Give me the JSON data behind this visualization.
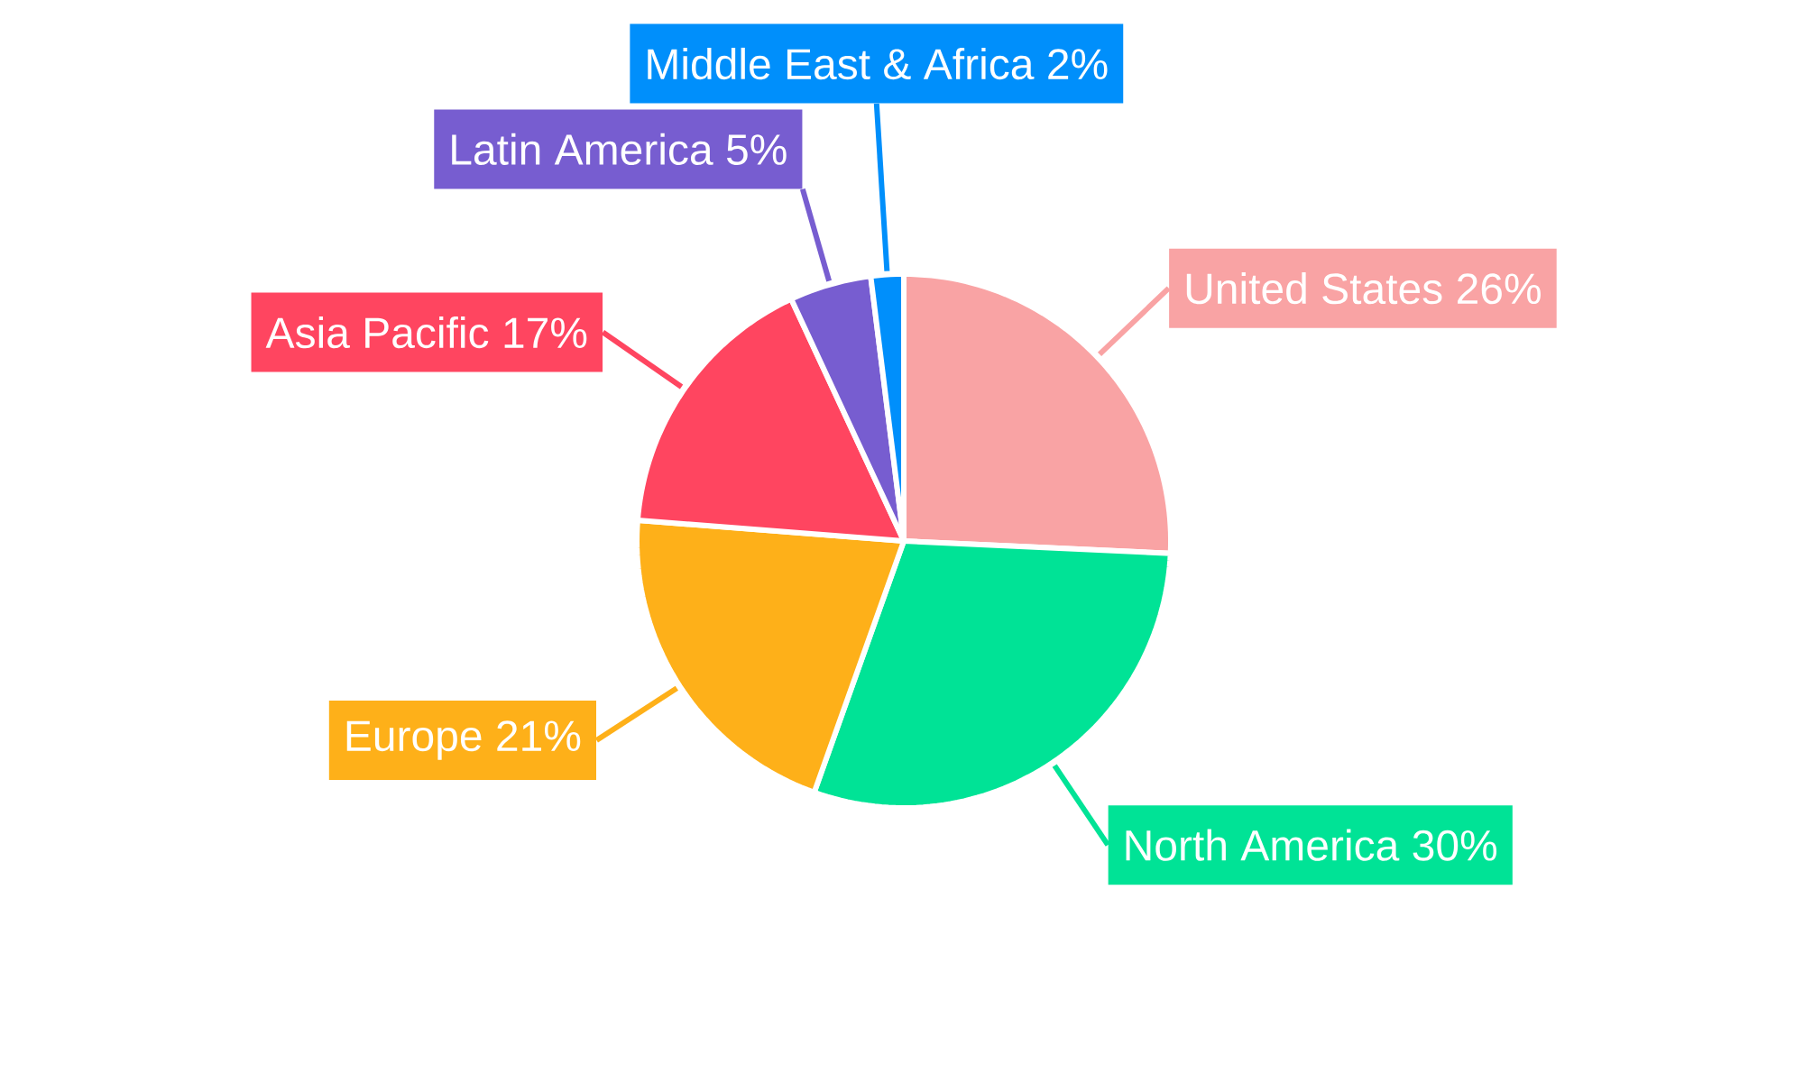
{
  "chart_data": {
    "type": "pie",
    "categories": [
      "United States",
      "North America",
      "Europe",
      "Asia Pacific",
      "Latin America",
      "Middle East & Africa"
    ],
    "values": [
      26,
      30,
      21,
      17,
      5,
      2
    ],
    "value_labels": [
      "26%",
      "30%",
      "21%",
      "17%",
      "5%",
      "2%"
    ],
    "colors": [
      "#f9a3a4",
      "#00e396",
      "#feb019",
      "#ff4560",
      "#775dd0",
      "#008ffb"
    ]
  }
}
